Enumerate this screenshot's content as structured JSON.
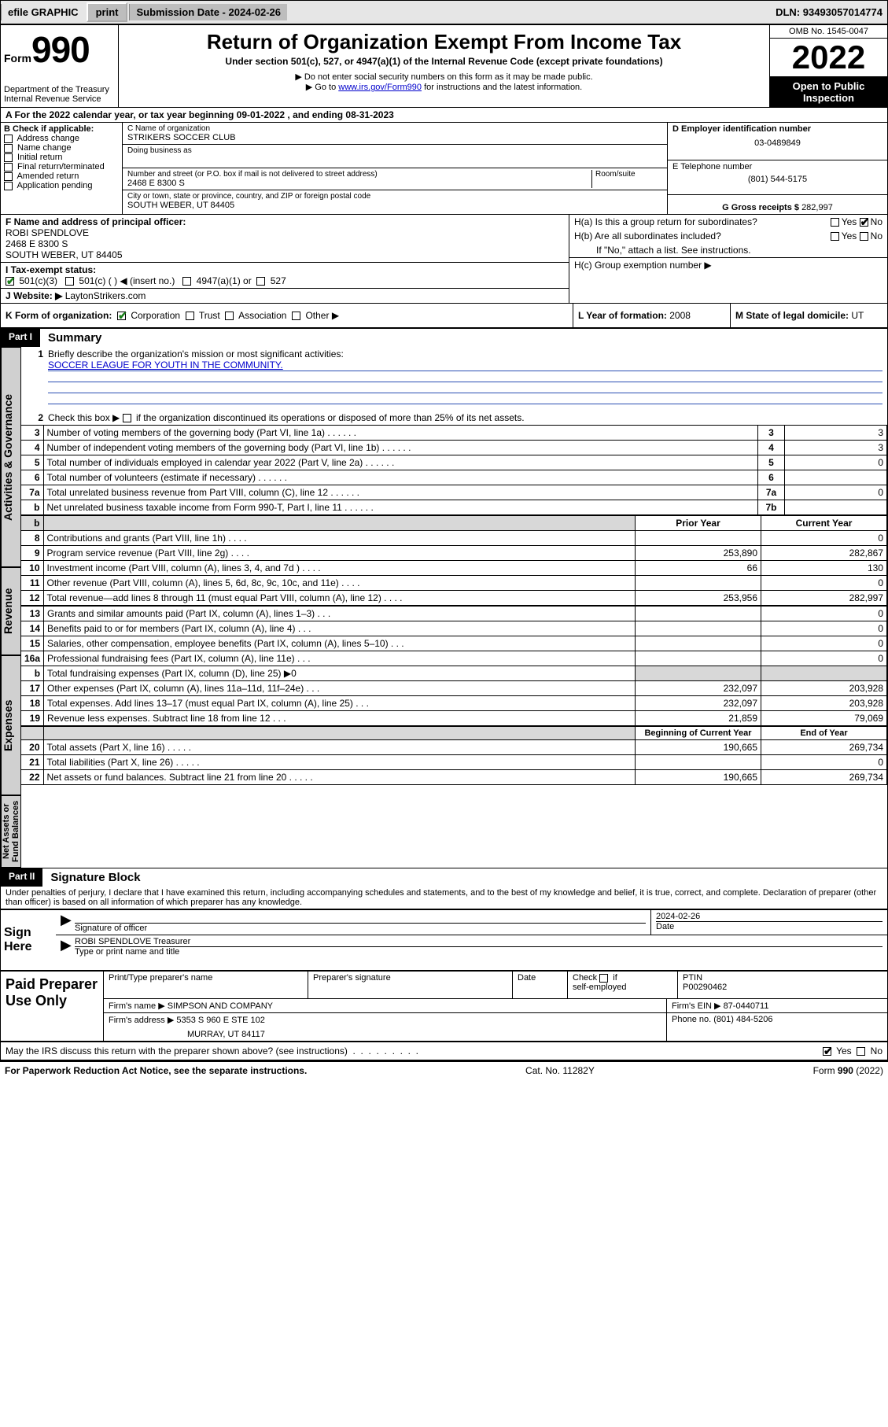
{
  "topbar": {
    "efile": "efile GRAPHIC",
    "print": "print",
    "submission_label": "Submission Date - ",
    "submission_date": "2024-02-26",
    "dln_label": "DLN: ",
    "dln": "93493057014774"
  },
  "header": {
    "form_word": "Form",
    "form_num": "990",
    "dept": "Department of the Treasury",
    "irs": "Internal Revenue Service",
    "title": "Return of Organization Exempt From Income Tax",
    "subtitle": "Under section 501(c), 527, or 4947(a)(1) of the Internal Revenue Code (except private foundations)",
    "inst1": "▶ Do not enter social security numbers on this form as it may be made public.",
    "inst2_pre": "▶ Go to ",
    "inst2_link": "www.irs.gov/Form990",
    "inst2_post": " for instructions and the latest information.",
    "omb": "OMB No. 1545-0047",
    "year": "2022",
    "open": "Open to Public Inspection"
  },
  "rowA": {
    "text_pre": "A For the 2022 calendar year, or tax year beginning ",
    "begin": "09-01-2022",
    "mid": " , and ending ",
    "end": "08-31-2023"
  },
  "sectionB": {
    "lead": "B Check if applicable:",
    "items": [
      "Address change",
      "Name change",
      "Initial return",
      "Final return/terminated",
      "Amended return",
      "Application pending"
    ]
  },
  "sectionC": {
    "name_lbl": "C Name of organization",
    "name": "STRIKERS SOCCER CLUB",
    "dba_lbl": "Doing business as",
    "addr_lbl": "Number and street (or P.O. box if mail is not delivered to street address)",
    "room_lbl": "Room/suite",
    "addr": "2468 E 8300 S",
    "city_lbl": "City or town, state or province, country, and ZIP or foreign postal code",
    "city": "SOUTH WEBER, UT  84405"
  },
  "sectionD": {
    "lbl": "D Employer identification number",
    "val": "03-0489849"
  },
  "sectionE": {
    "lbl": "E Telephone number",
    "val": "(801) 544-5175"
  },
  "sectionG": {
    "lbl": "G Gross receipts $ ",
    "val": "282,997"
  },
  "sectionF": {
    "lbl": "F Name and address of principal officer:",
    "name": "ROBI SPENDLOVE",
    "addr1": "2468 E 8300 S",
    "addr2": "SOUTH WEBER, UT  84405"
  },
  "sectionH": {
    "a": "H(a)  Is this a group return for subordinates?",
    "b": "H(b)  Are all subordinates included?",
    "bnote": "If \"No,\" attach a list. See instructions.",
    "c": "H(c)  Group exemption number ▶",
    "yes": "Yes",
    "no": "No"
  },
  "sectionI": {
    "lbl": "I  Tax-exempt status:",
    "o1": "501(c)(3)",
    "o2": "501(c) (   ) ◀ (insert no.)",
    "o3": "4947(a)(1) or",
    "o4": "527"
  },
  "sectionJ": {
    "lbl": "J  Website: ▶ ",
    "val": "LaytonStrikers.com"
  },
  "sectionK": {
    "lbl": "K Form of organization:",
    "o1": "Corporation",
    "o2": "Trust",
    "o3": "Association",
    "o4": "Other ▶"
  },
  "sectionL": {
    "lbl": "L Year of formation: ",
    "val": "2008"
  },
  "sectionM": {
    "lbl": "M State of legal domicile: ",
    "val": "UT"
  },
  "part1": {
    "header": "Part I",
    "title": "Summary",
    "l1": "Briefly describe the organization's mission or most significant activities:",
    "mission": "SOCCER LEAGUE FOR YOUTH IN THE COMMUNITY.",
    "l2": "Check this box ▶      if the organization discontinued its operations or disposed of more than 25% of its net assets.",
    "rows_top": [
      {
        "n": "3",
        "t": "Number of voting members of the governing body (Part VI, line 1a)",
        "box": "3",
        "v": "3"
      },
      {
        "n": "4",
        "t": "Number of independent voting members of the governing body (Part VI, line 1b)",
        "box": "4",
        "v": "3"
      },
      {
        "n": "5",
        "t": "Total number of individuals employed in calendar year 2022 (Part V, line 2a)",
        "box": "5",
        "v": "0"
      },
      {
        "n": "6",
        "t": "Total number of volunteers (estimate if necessary)",
        "box": "6",
        "v": ""
      },
      {
        "n": "7a",
        "t": "Total unrelated business revenue from Part VIII, column (C), line 12",
        "box": "7a",
        "v": "0"
      },
      {
        "n": "b",
        "t": "Net unrelated business taxable income from Form 990-T, Part I, line 11",
        "box": "7b",
        "v": ""
      }
    ],
    "col_prior": "Prior Year",
    "col_current": "Current Year",
    "revenue": [
      {
        "n": "8",
        "t": "Contributions and grants (Part VIII, line 1h)",
        "p": "",
        "c": "0"
      },
      {
        "n": "9",
        "t": "Program service revenue (Part VIII, line 2g)",
        "p": "253,890",
        "c": "282,867"
      },
      {
        "n": "10",
        "t": "Investment income (Part VIII, column (A), lines 3, 4, and 7d )",
        "p": "66",
        "c": "130"
      },
      {
        "n": "11",
        "t": "Other revenue (Part VIII, column (A), lines 5, 6d, 8c, 9c, 10c, and 11e)",
        "p": "",
        "c": "0"
      },
      {
        "n": "12",
        "t": "Total revenue—add lines 8 through 11 (must equal Part VIII, column (A), line 12)",
        "p": "253,956",
        "c": "282,997"
      }
    ],
    "expenses": [
      {
        "n": "13",
        "t": "Grants and similar amounts paid (Part IX, column (A), lines 1–3)",
        "p": "",
        "c": "0"
      },
      {
        "n": "14",
        "t": "Benefits paid to or for members (Part IX, column (A), line 4)",
        "p": "",
        "c": "0"
      },
      {
        "n": "15",
        "t": "Salaries, other compensation, employee benefits (Part IX, column (A), lines 5–10)",
        "p": "",
        "c": "0"
      },
      {
        "n": "16a",
        "t": "Professional fundraising fees (Part IX, column (A), line 11e)",
        "p": "",
        "c": "0"
      },
      {
        "n": "b",
        "t": "Total fundraising expenses (Part IX, column (D), line 25) ▶0",
        "p": null,
        "c": null
      },
      {
        "n": "17",
        "t": "Other expenses (Part IX, column (A), lines 11a–11d, 11f–24e)",
        "p": "232,097",
        "c": "203,928"
      },
      {
        "n": "18",
        "t": "Total expenses. Add lines 13–17 (must equal Part IX, column (A), line 25)",
        "p": "232,097",
        "c": "203,928"
      },
      {
        "n": "19",
        "t": "Revenue less expenses. Subtract line 18 from line 12",
        "p": "21,859",
        "c": "79,069"
      }
    ],
    "col_begin": "Beginning of Current Year",
    "col_end": "End of Year",
    "netassets": [
      {
        "n": "20",
        "t": "Total assets (Part X, line 16)",
        "p": "190,665",
        "c": "269,734"
      },
      {
        "n": "21",
        "t": "Total liabilities (Part X, line 26)",
        "p": "",
        "c": "0"
      },
      {
        "n": "22",
        "t": "Net assets or fund balances. Subtract line 21 from line 20",
        "p": "190,665",
        "c": "269,734"
      }
    ],
    "tabs": {
      "gov": "Activities & Governance",
      "rev": "Revenue",
      "exp": "Expenses",
      "net": "Net Assets or Fund Balances"
    }
  },
  "part2": {
    "header": "Part II",
    "title": "Signature Block",
    "decl": "Under penalties of perjury, I declare that I have examined this return, including accompanying schedules and statements, and to the best of my knowledge and belief, it is true, correct, and complete. Declaration of preparer (other than officer) is based on all information of which preparer has any knowledge.",
    "sign_here": "Sign Here",
    "sig_officer": "Signature of officer",
    "sig_date_lbl": "Date",
    "sig_date": "2024-02-26",
    "officer_name": "ROBI SPENDLOVE Treasurer",
    "officer_sub": "Type or print name and title",
    "paid": "Paid Preparer Use Only",
    "prep_name_lbl": "Print/Type preparer's name",
    "prep_sig_lbl": "Preparer's signature",
    "date_lbl": "Date",
    "check_self": "Check       if self-employed",
    "ptin_lbl": "PTIN",
    "ptin": "P00290462",
    "firm_name_lbl": "Firm's name   ▶ ",
    "firm_name": "SIMPSON AND COMPANY",
    "firm_ein_lbl": "Firm's EIN ▶ ",
    "firm_ein": "87-0440711",
    "firm_addr_lbl": "Firm's address ▶ ",
    "firm_addr1": "5353 S 960 E STE 102",
    "firm_addr2": "MURRAY, UT 84117",
    "phone_lbl": "Phone no. ",
    "phone": "(801) 484-5206",
    "discuss": "May the IRS discuss this return with the preparer shown above? (see instructions)",
    "yes": "Yes",
    "no": "No"
  },
  "footer": {
    "pra": "For Paperwork Reduction Act Notice, see the separate instructions.",
    "cat": "Cat. No. 11282Y",
    "form": "Form 990 (2022)"
  }
}
